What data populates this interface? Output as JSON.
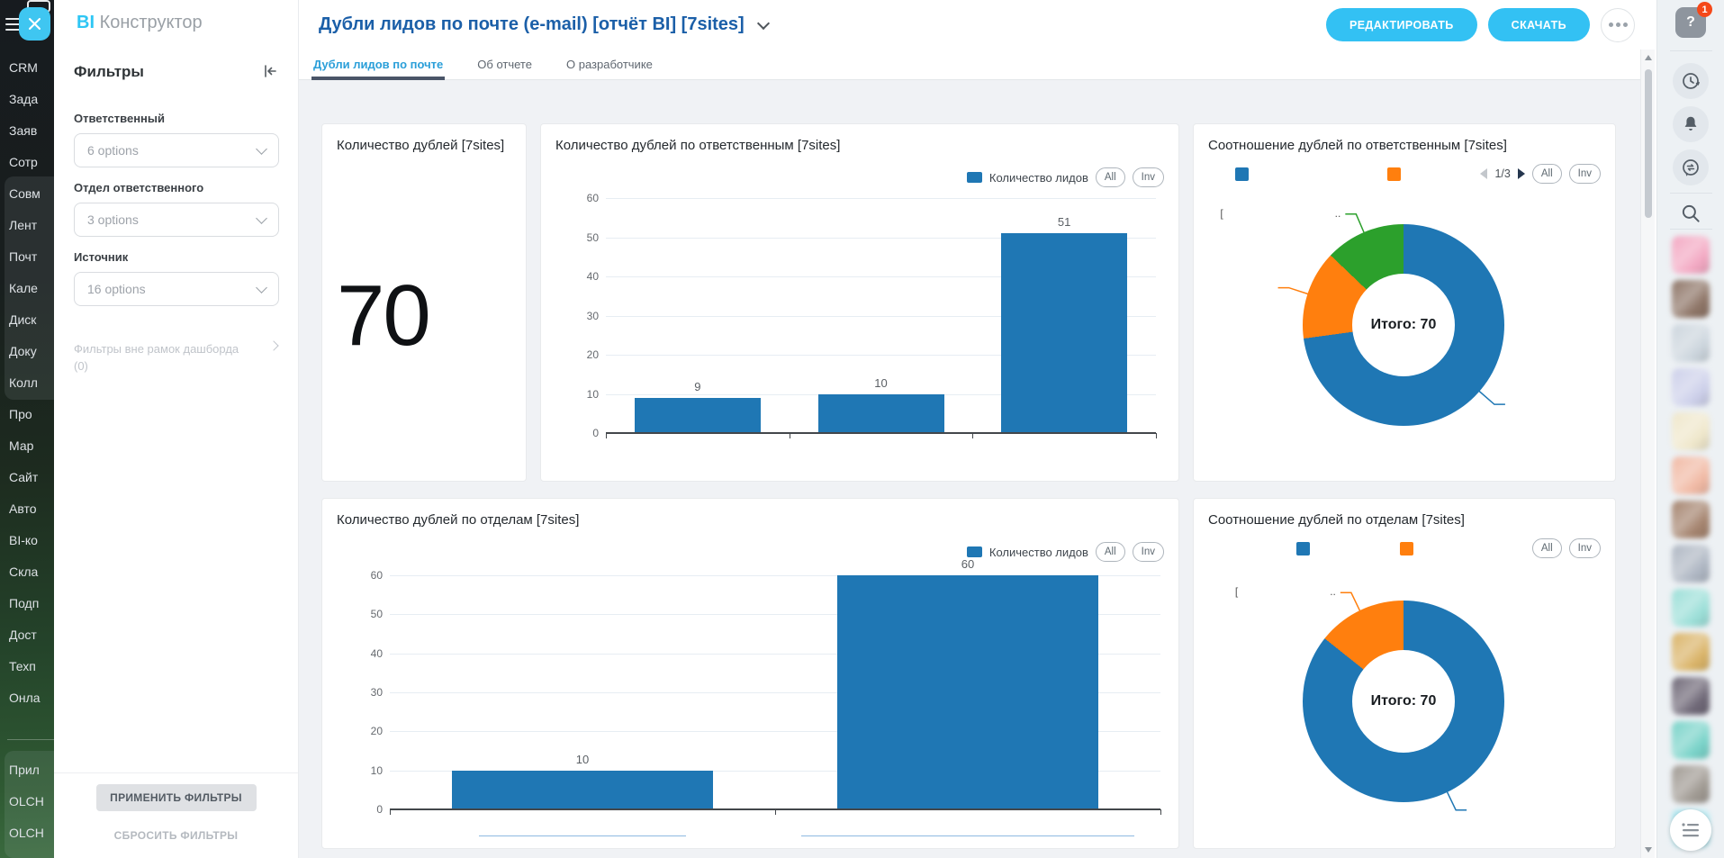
{
  "logo": {
    "bi": "BI",
    "rest": "Конструктор"
  },
  "left_menu": {
    "items": [
      "CRM",
      "Зада",
      "Заяв",
      "Сотр",
      "Совм",
      "Лент",
      "Почт",
      "Кале",
      "Диск",
      "Доку",
      "Колл",
      "Про",
      "Мар",
      "Сайт",
      "Авто",
      "BI-ко",
      "Скла",
      "Подп",
      "Дост",
      "Техп",
      "Онла"
    ],
    "bottom_items": [
      "Прил",
      "OLCH",
      "OLCH"
    ]
  },
  "filters_panel": {
    "title": "Фильтры",
    "filters": [
      {
        "label": "Ответственный",
        "value": "6 options"
      },
      {
        "label": "Отдел ответственного",
        "value": "3 options"
      },
      {
        "label": "Источник",
        "value": "16 options"
      }
    ],
    "outer_filters": {
      "label": "Фильтры вне рамок дашборда",
      "count": "(0)"
    },
    "apply_button": "ПРИМЕНИТЬ ФИЛЬТРЫ",
    "reset_button": "СБРОСИТЬ ФИЛЬТРЫ"
  },
  "header": {
    "title": "Дубли лидов по почте (e-mail) [отчёт BI] [7sites]",
    "edit_button": "РЕДАКТИРОВАТЬ",
    "download_button": "СКАЧАТЬ"
  },
  "tabs": [
    {
      "label": "Дубли лидов по почте",
      "active": true
    },
    {
      "label": "Об отчете",
      "active": false
    },
    {
      "label": "О разработчике",
      "active": false
    }
  ],
  "right_sidebar": {
    "help_badge": "1",
    "avatar_colors": [
      "#f3a9c3",
      "#8e7567",
      "#ccd5dd",
      "#cdd0ea",
      "#efe7cb",
      "#f1baa5",
      "#a5846f",
      "#afb7c3",
      "#9cdfd8",
      "#dab469",
      "#6f6877",
      "#7ad3c9",
      "#a09a93",
      "#a7e5ef"
    ]
  },
  "chart_data": [
    {
      "type": "number",
      "title": "Количество дублей [7sites]",
      "value": "70"
    },
    {
      "type": "bar",
      "title": "Количество дублей по ответственным [7sites]",
      "legend_label": "Количество лидов",
      "buttons": [
        "All",
        "Inv"
      ],
      "categories": [
        "",
        "",
        ""
      ],
      "categories_redacted": true,
      "values": [
        9,
        10,
        51
      ],
      "ylim": [
        0,
        60
      ],
      "yticks": [
        0,
        10,
        20,
        30,
        40,
        50,
        60
      ],
      "bar_color": "#1f77b4",
      "grid": true,
      "legend_position": "top-right"
    },
    {
      "type": "donut",
      "title": "Соотношение дублей по ответственным [7sites]",
      "buttons": [
        "All",
        "Inv"
      ],
      "pagination": "1/3",
      "center_label": "Итого: 70",
      "total": 70,
      "slices": [
        {
          "label": "",
          "value": 51,
          "color": "#1f77b4"
        },
        {
          "label": "",
          "value": 10,
          "color": "#ff7f0e"
        },
        {
          "label": "",
          "value": 9,
          "color": "#2ca02c",
          "bracket": true
        }
      ],
      "labels_redacted": true
    },
    {
      "type": "bar",
      "title": "Количество дублей по отделам [7sites]",
      "legend_label": "Количество лидов",
      "buttons": [
        "All",
        "Inv"
      ],
      "categories": [
        "",
        ""
      ],
      "categories_redacted": true,
      "values": [
        10,
        60
      ],
      "ylim": [
        0,
        60
      ],
      "yticks": [
        0,
        10,
        20,
        30,
        40,
        50,
        60
      ],
      "bar_color": "#1f77b4",
      "grid": true,
      "link_labels": true,
      "legend_position": "top-right"
    },
    {
      "type": "donut",
      "title": "Соотношение дублей по отделам [7sites]",
      "buttons": [
        "All",
        "Inv"
      ],
      "center_label": "Итого: 70",
      "total": 70,
      "slices": [
        {
          "label": "",
          "value": 60,
          "color": "#1f77b4"
        },
        {
          "label": "",
          "value": 10,
          "color": "#ff7f0e",
          "bracket": true
        }
      ],
      "labels_redacted": true
    }
  ]
}
